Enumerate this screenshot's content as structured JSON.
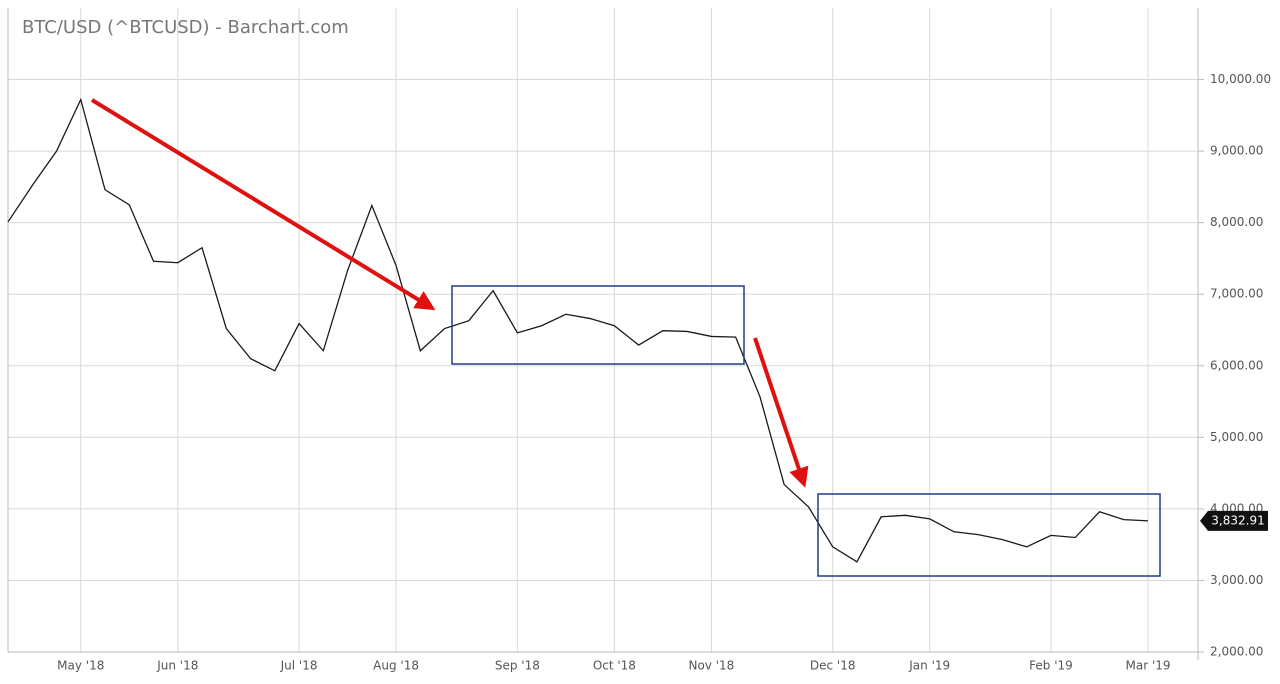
{
  "chart_data": {
    "type": "line",
    "title": "BTC/USD (^BTCUSD) - Barchart.com",
    "categories": [
      null,
      null,
      null,
      "May '18",
      null,
      null,
      null,
      "Jun '18",
      null,
      null,
      null,
      null,
      "Jul '18",
      null,
      null,
      null,
      "Aug '18",
      null,
      null,
      null,
      null,
      "Sep '18",
      null,
      null,
      null,
      "Oct '18",
      null,
      null,
      null,
      "Nov '18",
      null,
      null,
      null,
      null,
      "Dec '18",
      null,
      null,
      null,
      "Jan '19",
      null,
      null,
      null,
      null,
      "Feb '19",
      null,
      null,
      null,
      "Mar '19"
    ],
    "values": [
      8010,
      8520,
      9000,
      9720,
      8460,
      8250,
      7460,
      7440,
      7650,
      6520,
      6100,
      5930,
      6590,
      6210,
      7330,
      8240,
      7400,
      6210,
      6520,
      6630,
      7050,
      6460,
      6560,
      6720,
      6660,
      6560,
      6290,
      6490,
      6480,
      6410,
      6400,
      5570,
      4340,
      4030,
      3470,
      3260,
      3890,
      3910,
      3860,
      3680,
      3640,
      3570,
      3470,
      3630,
      3600,
      3960,
      3850,
      3832.91
    ],
    "value_labels": [
      null,
      null,
      null,
      null,
      null,
      null,
      null,
      null,
      null,
      null,
      null,
      null,
      null,
      null,
      null,
      null,
      null,
      null,
      null,
      null,
      null,
      null,
      null,
      null,
      null,
      null,
      null,
      null,
      null,
      null,
      null,
      null,
      null,
      null,
      null,
      null,
      null,
      null,
      null,
      null,
      null,
      null,
      null,
      null,
      null,
      null,
      null,
      "3,832.91"
    ],
    "color": "#1a1a1a",
    "ylim": [
      2000,
      11000
    ],
    "yticks": [
      {
        "value": 2000,
        "label": "2,000.00"
      },
      {
        "value": 3000,
        "label": "3,000.00"
      },
      {
        "value": 4000,
        "label": "4,000.00"
      },
      {
        "value": 5000,
        "label": "5,000.00"
      },
      {
        "value": 6000,
        "label": "6,000.00"
      },
      {
        "value": 7000,
        "label": "7,000.00"
      },
      {
        "value": 8000,
        "label": "8,000.00"
      },
      {
        "value": 9000,
        "label": "9,000.00"
      },
      {
        "value": 10000,
        "label": "10,000.00"
      }
    ],
    "grid": true
  }
}
